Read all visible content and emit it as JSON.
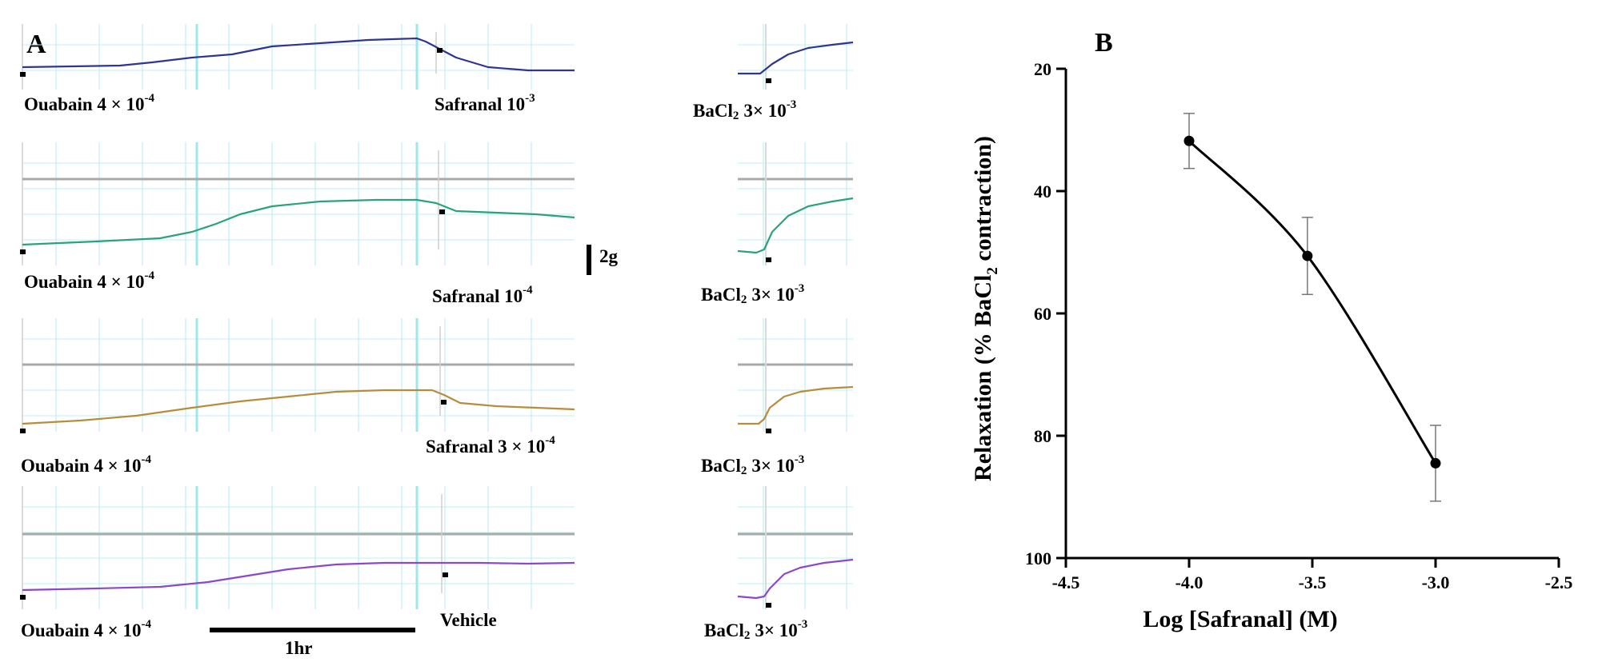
{
  "panel_a": {
    "letter": "A",
    "scale_bar_label": "2g",
    "time_bar_label": "1hr",
    "colors": {
      "grid": "#bfeff5",
      "baseline": "#aaaaaa",
      "trace1": "#2e3592",
      "trace2": "#2aa37a",
      "trace3": "#b78d3c",
      "trace4": "#8c48c8"
    },
    "rows": [
      {
        "ouabain_text": "Ouabain 4 × 10",
        "ouabain_exp": "-4",
        "drug_text": "Safranal 10",
        "drug_exp": "-3",
        "bacl_text": "BaCl",
        "bacl_sub": "2",
        "bacl_conc": "3× 10",
        "bacl_exp": "-3"
      },
      {
        "ouabain_text": "Ouabain 4 × 10",
        "ouabain_exp": "-4",
        "drug_text": "Safranal 10",
        "drug_exp": "-4",
        "bacl_text": "BaCl",
        "bacl_sub": "2",
        "bacl_conc": "3× 10",
        "bacl_exp": "-3"
      },
      {
        "ouabain_text": "Ouabain 4 × 10",
        "ouabain_exp": "-4",
        "drug_text": "Safranal 3 × 10",
        "drug_exp": "-4",
        "bacl_text": "BaCl",
        "bacl_sub": "2",
        "bacl_conc": "3× 10",
        "bacl_exp": "-3"
      },
      {
        "ouabain_text": "Ouabain 4 × 10",
        "ouabain_exp": "-4",
        "drug_text": "Vehicle",
        "drug_exp": "",
        "bacl_text": "BaCl",
        "bacl_sub": "2",
        "bacl_conc": "3× 10",
        "bacl_exp": "-3"
      }
    ]
  },
  "chart_data": {
    "type": "line",
    "panel_letter": "B",
    "title": "",
    "xlabel": "Log [Safranal] (M)",
    "ylabel_prefix": "Relaxation (% BaCl",
    "ylabel_sub": "2",
    "ylabel_suffix": " contraction)",
    "xlim": [
      -4.5,
      -2.5
    ],
    "ylim": [
      20,
      100
    ],
    "y_inverted": true,
    "xticks": [
      -4.5,
      -4.0,
      -3.5,
      -3.0,
      -2.5
    ],
    "xtick_labels": [
      "-4.5",
      "-4.0",
      "-3.5",
      "-3.0",
      "-2.5"
    ],
    "yticks": [
      20,
      40,
      60,
      80,
      100
    ],
    "ytick_labels": [
      "20",
      "40",
      "60",
      "80",
      "100"
    ],
    "series": [
      {
        "name": "Safranal",
        "x": [
          -4.0,
          -3.52,
          -3.0
        ],
        "y": [
          31.8,
          50.6,
          84.5
        ],
        "error": [
          4.5,
          6.3,
          6.2
        ],
        "color": "#000000"
      }
    ]
  }
}
